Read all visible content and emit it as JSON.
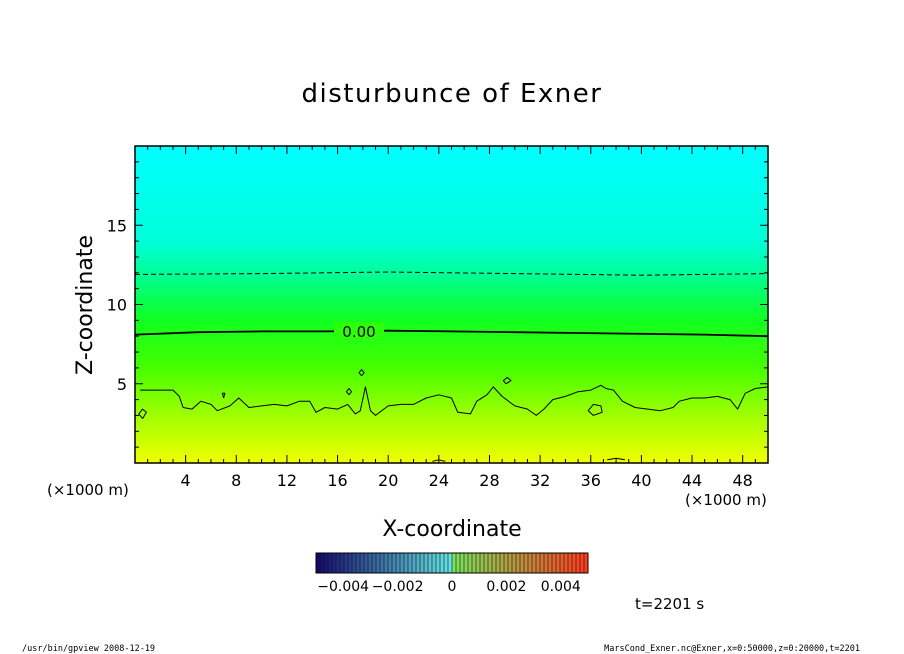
{
  "chart_data": {
    "type": "heatmap",
    "title": "disturbunce of Exner",
    "xlabel": "X-coordinate",
    "ylabel": "Z-coordinate",
    "x_unit_left": "(×1000 m)",
    "x_unit_right": "(×1000 m)",
    "xlim": [
      0,
      50
    ],
    "ylim": [
      0,
      20
    ],
    "x_ticks": [
      4,
      8,
      12,
      16,
      20,
      24,
      28,
      32,
      36,
      40,
      44,
      48
    ],
    "y_ticks": [
      5,
      10,
      15
    ],
    "contour_label": "0.00",
    "time_label": "t=2201 s",
    "colorbar": {
      "range": [
        -0.005,
        0.005
      ],
      "tick_labels": [
        "−0.004",
        "−0.002",
        "0",
        "0.002",
        "0.004"
      ],
      "tick_values": [
        -0.004,
        -0.002,
        0,
        0.002,
        0.004
      ]
    },
    "field_profile": [
      {
        "z": 0,
        "color": "#f2ff00"
      },
      {
        "z": 1.5,
        "color": "#c8ff00"
      },
      {
        "z": 3,
        "color": "#a0ff00"
      },
      {
        "z": 6,
        "color": "#46ff00"
      },
      {
        "z": 9,
        "color": "#10ff20"
      },
      {
        "z": 12,
        "color": "#00ff9a"
      },
      {
        "z": 14,
        "color": "#00ffd8"
      },
      {
        "z": 20,
        "color": "#00ffff"
      }
    ],
    "contours": [
      {
        "style": "dashed",
        "points": [
          [
            0,
            11.9
          ],
          [
            10,
            11.95
          ],
          [
            20,
            12.05
          ],
          [
            30,
            11.95
          ],
          [
            40,
            11.85
          ],
          [
            50,
            11.95
          ]
        ]
      },
      {
        "style": "solid-thick",
        "points": [
          [
            0,
            8.1
          ],
          [
            5,
            8.25
          ],
          [
            10,
            8.3
          ],
          [
            15,
            8.3
          ],
          [
            20,
            8.35
          ],
          [
            25,
            8.3
          ],
          [
            30,
            8.25
          ],
          [
            35,
            8.2
          ],
          [
            40,
            8.15
          ],
          [
            45,
            8.1
          ],
          [
            50,
            8.0
          ]
        ]
      },
      {
        "style": "solid",
        "points": [
          [
            0.4,
            4.6
          ],
          [
            3,
            4.6
          ],
          [
            3.5,
            4.2
          ],
          [
            3.8,
            3.5
          ],
          [
            4.5,
            3.4
          ],
          [
            5.2,
            3.9
          ],
          [
            6,
            3.7
          ],
          [
            6.5,
            3.3
          ],
          [
            7.5,
            3.6
          ],
          [
            8.2,
            4.1
          ],
          [
            9,
            3.5
          ],
          [
            10,
            3.6
          ],
          [
            11,
            3.7
          ],
          [
            12,
            3.6
          ],
          [
            13,
            3.9
          ],
          [
            13.8,
            3.9
          ],
          [
            14.3,
            3.2
          ],
          [
            15,
            3.5
          ],
          [
            16,
            3.4
          ],
          [
            16.8,
            3.7
          ],
          [
            17.4,
            3.1
          ],
          [
            17.8,
            3.3
          ],
          [
            18.2,
            4.8
          ],
          [
            18.6,
            3.3
          ],
          [
            19,
            3.0
          ],
          [
            20,
            3.6
          ],
          [
            21,
            3.7
          ],
          [
            22,
            3.7
          ],
          [
            23,
            4.1
          ],
          [
            24,
            4.3
          ],
          [
            25,
            4.1
          ],
          [
            25.5,
            3.2
          ],
          [
            26.5,
            3.1
          ],
          [
            27,
            3.9
          ],
          [
            27.8,
            4.3
          ],
          [
            28.3,
            4.8
          ],
          [
            29,
            4.2
          ],
          [
            30,
            3.6
          ],
          [
            31,
            3.4
          ],
          [
            31.7,
            3.0
          ],
          [
            32.3,
            3.4
          ],
          [
            33,
            4.0
          ],
          [
            34,
            4.2
          ],
          [
            35,
            4.5
          ],
          [
            36,
            4.6
          ],
          [
            36.8,
            4.9
          ],
          [
            37.2,
            4.7
          ],
          [
            37.8,
            4.6
          ],
          [
            38.5,
            3.9
          ],
          [
            39.5,
            3.5
          ],
          [
            40.5,
            3.4
          ],
          [
            41.5,
            3.3
          ],
          [
            42.5,
            3.5
          ],
          [
            43,
            3.9
          ],
          [
            44,
            4.1
          ],
          [
            45,
            4.1
          ],
          [
            46,
            4.2
          ],
          [
            47,
            4.0
          ],
          [
            47.6,
            3.4
          ],
          [
            48.2,
            4.4
          ],
          [
            49,
            4.7
          ],
          [
            50,
            4.8
          ]
        ]
      },
      {
        "style": "solid",
        "points": [
          [
            0.6,
            2.8
          ],
          [
            0.9,
            3.2
          ],
          [
            0.6,
            3.4
          ],
          [
            0.3,
            3.1
          ],
          [
            0.6,
            2.8
          ]
        ]
      },
      {
        "style": "solid",
        "points": [
          [
            36.2,
            3.0
          ],
          [
            36.9,
            3.2
          ],
          [
            36.8,
            3.6
          ],
          [
            36.2,
            3.7
          ],
          [
            35.8,
            3.3
          ],
          [
            36.2,
            3.0
          ]
        ]
      },
      {
        "style": "solid",
        "points": [
          [
            29.3,
            5.0
          ],
          [
            29.7,
            5.2
          ],
          [
            29.4,
            5.4
          ],
          [
            29.1,
            5.2
          ],
          [
            29.3,
            5.0
          ]
        ]
      },
      {
        "style": "solid",
        "points": [
          [
            17.9,
            5.5
          ],
          [
            18.1,
            5.7
          ],
          [
            17.9,
            5.9
          ],
          [
            17.7,
            5.7
          ],
          [
            17.9,
            5.5
          ]
        ]
      },
      {
        "style": "solid",
        "points": [
          [
            16.9,
            4.3
          ],
          [
            17.1,
            4.5
          ],
          [
            16.9,
            4.7
          ],
          [
            16.7,
            4.5
          ],
          [
            16.9,
            4.3
          ]
        ]
      },
      {
        "style": "solid",
        "points": [
          [
            7.0,
            4.1
          ],
          [
            7.1,
            4.4
          ],
          [
            6.9,
            4.4
          ],
          [
            7.0,
            4.1
          ]
        ]
      },
      {
        "style": "solid",
        "points": [
          [
            37.3,
            0.2
          ],
          [
            38,
            0.3
          ],
          [
            38.7,
            0.2
          ]
        ]
      },
      {
        "style": "solid",
        "points": [
          [
            23.5,
            0.1
          ],
          [
            24,
            0.2
          ],
          [
            24.5,
            0.1
          ]
        ]
      }
    ]
  },
  "footer": {
    "left": "/usr/bin/gpview   2008-12-19",
    "right": "MarsCond_Exner.nc@Exner,x=0:50000,z=0:20000,t=2201"
  }
}
